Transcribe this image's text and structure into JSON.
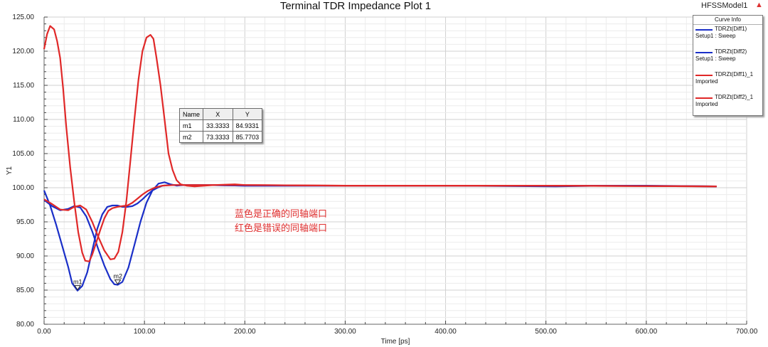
{
  "header": {
    "title": "Terminal TDR Impedance Plot 1",
    "app_name": "HFSSModel1",
    "app_icon": "warning-triangle-icon",
    "accent_color": "#e03030"
  },
  "chart_data": {
    "type": "line",
    "title": "Terminal TDR Impedance Plot 1",
    "xlabel": "Time [ps]",
    "ylabel": "Y1",
    "xlim": [
      0,
      700
    ],
    "ylim": [
      80,
      125
    ],
    "grid": true,
    "x_ticks": [
      "0.00",
      "100.00",
      "200.00",
      "300.00",
      "400.00",
      "500.00",
      "600.00",
      "700.00"
    ],
    "y_ticks": [
      "80.00",
      "85.00",
      "90.00",
      "95.00",
      "100.00",
      "105.00",
      "110.00",
      "115.00",
      "120.00",
      "125.00"
    ],
    "series": [
      {
        "name": "TDRZt(Diff1)",
        "source": "Setup1 : Sweep",
        "color": "#1a2fc8",
        "points": [
          [
            0,
            99.6
          ],
          [
            6,
            97.4
          ],
          [
            12,
            94.6
          ],
          [
            18,
            91.5
          ],
          [
            24,
            88.4
          ],
          [
            28,
            86.0
          ],
          [
            33.3,
            84.93
          ],
          [
            38,
            85.6
          ],
          [
            43,
            87.6
          ],
          [
            48,
            90.8
          ],
          [
            53,
            94.0
          ],
          [
            58,
            96.1
          ],
          [
            63,
            97.2
          ],
          [
            68,
            97.4
          ],
          [
            73,
            97.4
          ],
          [
            78,
            97.2
          ],
          [
            83,
            97.2
          ],
          [
            88,
            97.3
          ],
          [
            93,
            97.7
          ],
          [
            98,
            98.3
          ],
          [
            103,
            99.0
          ],
          [
            108,
            99.6
          ],
          [
            113,
            100.0
          ],
          [
            118,
            100.3
          ],
          [
            125,
            100.4
          ],
          [
            140,
            100.4
          ],
          [
            160,
            100.4
          ],
          [
            200,
            100.3
          ],
          [
            300,
            100.3
          ],
          [
            400,
            100.3
          ],
          [
            500,
            100.3
          ],
          [
            600,
            100.3
          ],
          [
            670,
            100.2
          ]
        ]
      },
      {
        "name": "TDRZt(Diff2)",
        "source": "Setup1 : Sweep",
        "color": "#1a2fc8",
        "points": [
          [
            0,
            98.2
          ],
          [
            8,
            97.3
          ],
          [
            16,
            96.7
          ],
          [
            24,
            96.9
          ],
          [
            30,
            97.3
          ],
          [
            36,
            97.1
          ],
          [
            42,
            95.8
          ],
          [
            48,
            93.6
          ],
          [
            54,
            91.0
          ],
          [
            60,
            88.6
          ],
          [
            66,
            86.6
          ],
          [
            70,
            85.85
          ],
          [
            73.3,
            85.77
          ],
          [
            78,
            86.2
          ],
          [
            84,
            88.3
          ],
          [
            90,
            91.6
          ],
          [
            96,
            95.0
          ],
          [
            102,
            97.8
          ],
          [
            108,
            99.6
          ],
          [
            114,
            100.6
          ],
          [
            120,
            100.8
          ],
          [
            126,
            100.5
          ],
          [
            132,
            100.3
          ],
          [
            140,
            100.4
          ],
          [
            160,
            100.4
          ],
          [
            200,
            100.3
          ],
          [
            300,
            100.3
          ],
          [
            400,
            100.3
          ],
          [
            510,
            100.2
          ],
          [
            560,
            100.3
          ],
          [
            670,
            100.2
          ]
        ]
      },
      {
        "name": "TDRZt(Diff1)_1",
        "source": "Imported",
        "color": "#e02828",
        "points": [
          [
            0,
            120.3
          ],
          [
            3,
            122.5
          ],
          [
            6,
            123.7
          ],
          [
            10,
            123.2
          ],
          [
            13,
            121.5
          ],
          [
            16,
            119.0
          ],
          [
            19,
            114.5
          ],
          [
            22,
            109.0
          ],
          [
            26,
            103.0
          ],
          [
            30,
            98.0
          ],
          [
            34,
            93.5
          ],
          [
            38,
            90.5
          ],
          [
            41,
            89.3
          ],
          [
            45,
            89.2
          ],
          [
            48,
            90.2
          ],
          [
            52,
            92.0
          ],
          [
            56,
            93.8
          ],
          [
            60,
            95.5
          ],
          [
            64,
            96.6
          ],
          [
            68,
            97.0
          ],
          [
            73,
            97.2
          ],
          [
            78,
            97.3
          ],
          [
            83,
            97.4
          ],
          [
            88,
            97.8
          ],
          [
            93,
            98.4
          ],
          [
            98,
            99.0
          ],
          [
            103,
            99.5
          ],
          [
            110,
            100.0
          ],
          [
            118,
            100.3
          ],
          [
            130,
            100.4
          ],
          [
            150,
            100.4
          ],
          [
            200,
            100.4
          ],
          [
            300,
            100.3
          ],
          [
            400,
            100.3
          ],
          [
            500,
            100.3
          ],
          [
            670,
            100.2
          ]
        ]
      },
      {
        "name": "TDRZt(Diff2)_1",
        "source": "Imported",
        "color": "#e02828",
        "points": [
          [
            0,
            98.3
          ],
          [
            8,
            97.6
          ],
          [
            16,
            96.8
          ],
          [
            24,
            96.7
          ],
          [
            30,
            97.2
          ],
          [
            36,
            97.4
          ],
          [
            42,
            96.8
          ],
          [
            48,
            95.0
          ],
          [
            54,
            92.8
          ],
          [
            60,
            90.8
          ],
          [
            66,
            89.5
          ],
          [
            70,
            89.6
          ],
          [
            74,
            90.6
          ],
          [
            78,
            93.5
          ],
          [
            82,
            98.0
          ],
          [
            86,
            104.0
          ],
          [
            90,
            110.0
          ],
          [
            94,
            115.8
          ],
          [
            98,
            120.0
          ],
          [
            102,
            122.0
          ],
          [
            106,
            122.4
          ],
          [
            109,
            121.8
          ],
          [
            112,
            119.0
          ],
          [
            116,
            115.0
          ],
          [
            120,
            110.0
          ],
          [
            124,
            105.0
          ],
          [
            128,
            102.6
          ],
          [
            132,
            101.1
          ],
          [
            136,
            100.5
          ],
          [
            142,
            100.3
          ],
          [
            150,
            100.2
          ],
          [
            170,
            100.4
          ],
          [
            190,
            100.5
          ],
          [
            200,
            100.4
          ],
          [
            300,
            100.3
          ],
          [
            400,
            100.3
          ],
          [
            500,
            100.3
          ],
          [
            670,
            100.2
          ]
        ]
      }
    ],
    "markers": [
      {
        "name": "m1",
        "x": 33.3333,
        "y": 84.9331
      },
      {
        "name": "m2",
        "x": 73.3333,
        "y": 85.7703
      }
    ],
    "annotations": [
      "蓝色是正确的同轴端口",
      "红色是错误的同轴端口"
    ]
  },
  "marker_table": {
    "headers": [
      "Name",
      "X",
      "Y"
    ],
    "rows": [
      [
        "m1",
        "33.3333",
        "84.9331"
      ],
      [
        "m2",
        "73.3333",
        "85.7703"
      ]
    ]
  },
  "legend": {
    "title": "Curve Info"
  }
}
